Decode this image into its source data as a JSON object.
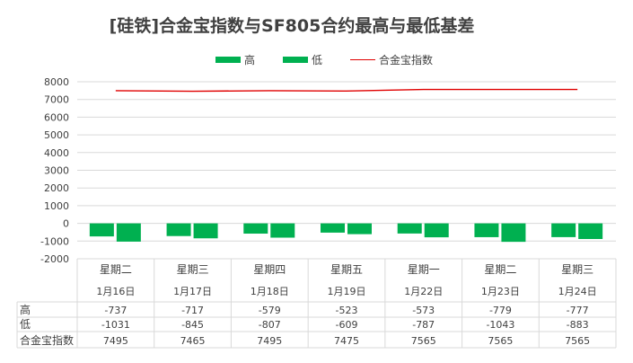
{
  "title": "[硅铁]合金宝指数与SF805合约最高与最低基差",
  "legend": {
    "high": "高",
    "low": "低",
    "index": "合金宝指数"
  },
  "colors": {
    "bar": "#00b050",
    "line": "#e00000",
    "grid": "#d9d9d9",
    "text": "#404040"
  },
  "chart_data": {
    "type": "bar",
    "title": "[硅铁]合金宝指数与SF805合约最高与最低基差",
    "categories": [
      {
        "weekday": "星期二",
        "date": "1月16日"
      },
      {
        "weekday": "星期三",
        "date": "1月17日"
      },
      {
        "weekday": "星期四",
        "date": "1月18日"
      },
      {
        "weekday": "星期五",
        "date": "1月19日"
      },
      {
        "weekday": "星期一",
        "date": "1月22日"
      },
      {
        "weekday": "星期二",
        "date": "1月23日"
      },
      {
        "weekday": "星期三",
        "date": "1月24日"
      }
    ],
    "series": [
      {
        "name": "高",
        "kind": "bar",
        "values": [
          -737,
          -717,
          -579,
          -523,
          -573,
          -779,
          -777
        ]
      },
      {
        "name": "低",
        "kind": "bar",
        "values": [
          -1031,
          -845,
          -807,
          -609,
          -787,
          -1043,
          -883
        ]
      },
      {
        "name": "合金宝指数",
        "kind": "line",
        "values": [
          7495,
          7465,
          7495,
          7475,
          7565,
          7565,
          7565
        ]
      }
    ],
    "table_values": {
      "高": [
        "-737",
        "-717",
        "-579",
        "-523",
        "-573",
        "-779",
        "-777"
      ],
      "低": [
        "-1031",
        "-845",
        "-807",
        "-609",
        "-787",
        "-1043",
        "-883"
      ],
      "合金宝指数": [
        "7495",
        "7465",
        "7495",
        "7475",
        "7565",
        "7565",
        "7565"
      ]
    },
    "ylim": [
      -2000,
      8000
    ],
    "yticks": [
      "8000",
      "7000",
      "6000",
      "5000",
      "4000",
      "3000",
      "2000",
      "1000",
      "0",
      "-1000",
      "-2000"
    ],
    "grid": true,
    "legend_position": "top",
    "data_table": true
  }
}
